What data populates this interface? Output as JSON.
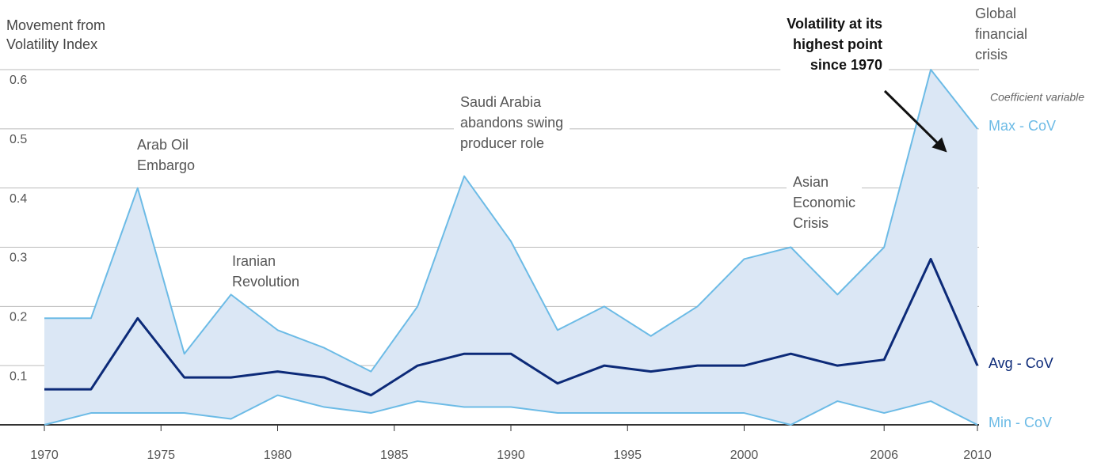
{
  "chart_data": {
    "type": "line",
    "ylabel": [
      "Movement from",
      "Volatility Index"
    ],
    "x": [
      1970,
      1972,
      1974,
      1976,
      1978,
      1980,
      1982,
      1984,
      1986,
      1988,
      1990,
      1992,
      1994,
      1996,
      1998,
      2000,
      2002,
      2004,
      2006,
      2008,
      2010
    ],
    "series": [
      {
        "name": "Max - CoV",
        "color": "#6cbbe6",
        "values": [
          0.18,
          0.18,
          0.4,
          0.12,
          0.22,
          0.16,
          0.13,
          0.09,
          0.2,
          0.42,
          0.31,
          0.16,
          0.2,
          0.15,
          0.2,
          0.28,
          0.3,
          0.22,
          0.3,
          0.6,
          0.5
        ]
      },
      {
        "name": "Avg - CoV",
        "color": "#0c2a78",
        "values": [
          0.06,
          0.06,
          0.18,
          0.08,
          0.08,
          0.09,
          0.08,
          0.05,
          0.1,
          0.12,
          0.12,
          0.07,
          0.1,
          0.09,
          0.1,
          0.1,
          0.12,
          0.1,
          0.11,
          0.28,
          0.1
        ]
      },
      {
        "name": "Min - CoV",
        "color": "#6cbbe6",
        "values": [
          0.0,
          0.02,
          0.02,
          0.02,
          0.01,
          0.05,
          0.03,
          0.02,
          0.04,
          0.03,
          0.03,
          0.02,
          0.02,
          0.02,
          0.02,
          0.02,
          0.0,
          0.04,
          0.02,
          0.04,
          0.0
        ]
      }
    ],
    "band_color": "#dbe7f5",
    "xlim": [
      1970,
      2010
    ],
    "xticks": [
      1970,
      1975,
      1980,
      1985,
      1990,
      1995,
      2000,
      2006,
      2010
    ],
    "ylim": [
      0,
      0.6
    ],
    "yticks": [
      0.1,
      0.2,
      0.3,
      0.4,
      0.5,
      0.6
    ],
    "grid": true,
    "legend_note": "Coefficient variable",
    "annotations": [
      {
        "lines": [
          "Arab Oil",
          "Embargo"
        ]
      },
      {
        "lines": [
          "Iranian",
          "Revolution"
        ]
      },
      {
        "lines": [
          "Saudi Arabia",
          "abandons swing",
          "producer role"
        ]
      },
      {
        "lines": [
          "Asian",
          "Economic",
          "Crisis"
        ]
      },
      {
        "lines": [
          "Global",
          "financial",
          "crisis"
        ]
      },
      {
        "lines": [
          "Volatility at its",
          "highest point",
          "since 1970"
        ]
      }
    ]
  }
}
